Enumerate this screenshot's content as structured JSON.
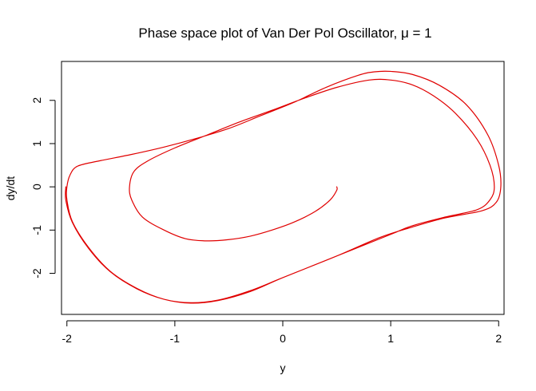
{
  "chart_data": {
    "type": "line",
    "title": "Phase space plot of Van Der Pol Oscillator, μ = 1",
    "xlabel": "y",
    "ylabel": "dy/dt",
    "xlim": [
      -2.05,
      2.05
    ],
    "ylim": [
      -2.95,
      2.9
    ],
    "x_ticks": [
      -2,
      -1,
      0,
      1,
      2
    ],
    "x_tick_labels": [
      "-2",
      "-1",
      "0",
      "1",
      "2"
    ],
    "y_ticks": [
      -2,
      -1,
      0,
      1,
      2
    ],
    "y_tick_labels": [
      "-2",
      "-1",
      "0",
      "1",
      "2"
    ],
    "grid": false,
    "series": [
      {
        "color": "#e00000",
        "points": [
          [
            0.5,
            0.0
          ],
          [
            0.5,
            -0.08
          ],
          [
            0.44,
            -0.3
          ],
          [
            0.3,
            -0.57
          ],
          [
            0.1,
            -0.82
          ],
          [
            -0.1,
            -1.0
          ],
          [
            -0.3,
            -1.14
          ],
          [
            -0.5,
            -1.22
          ],
          [
            -0.7,
            -1.25
          ],
          [
            -0.9,
            -1.2
          ],
          [
            -1.1,
            -1.0
          ],
          [
            -1.3,
            -0.7
          ],
          [
            -1.4,
            -0.3
          ],
          [
            -1.42,
            0.0
          ],
          [
            -1.38,
            0.35
          ],
          [
            -1.25,
            0.6
          ],
          [
            -1.0,
            0.9
          ],
          [
            -0.7,
            1.2
          ],
          [
            -0.4,
            1.5
          ],
          [
            -0.1,
            1.77
          ],
          [
            0.2,
            2.05
          ],
          [
            0.5,
            2.3
          ],
          [
            0.8,
            2.47
          ],
          [
            1.0,
            2.47
          ],
          [
            1.2,
            2.36
          ],
          [
            1.4,
            2.1
          ],
          [
            1.6,
            1.7
          ],
          [
            1.8,
            1.1
          ],
          [
            1.92,
            0.5
          ],
          [
            1.96,
            0.0
          ],
          [
            1.92,
            -0.3
          ],
          [
            1.8,
            -0.53
          ],
          [
            1.5,
            -0.7
          ],
          [
            1.2,
            -0.9
          ],
          [
            1.0,
            -1.1
          ],
          [
            0.5,
            -1.6
          ],
          [
            0.0,
            -2.1
          ],
          [
            -0.3,
            -2.4
          ],
          [
            -0.6,
            -2.62
          ],
          [
            -0.85,
            -2.68
          ],
          [
            -1.1,
            -2.6
          ],
          [
            -1.35,
            -2.35
          ],
          [
            -1.6,
            -1.95
          ],
          [
            -1.8,
            -1.4
          ],
          [
            -1.95,
            -0.8
          ],
          [
            -2.0,
            -0.3
          ],
          [
            -2.0,
            0.0
          ],
          [
            -1.97,
            0.28
          ],
          [
            -1.9,
            0.48
          ],
          [
            -1.7,
            0.6
          ],
          [
            -1.4,
            0.75
          ],
          [
            -1.1,
            0.92
          ],
          [
            -0.8,
            1.12
          ],
          [
            -0.5,
            1.35
          ],
          [
            -0.2,
            1.65
          ],
          [
            0.1,
            1.95
          ],
          [
            0.4,
            2.3
          ],
          [
            0.7,
            2.58
          ],
          [
            0.85,
            2.66
          ],
          [
            1.0,
            2.67
          ],
          [
            1.2,
            2.6
          ],
          [
            1.45,
            2.35
          ],
          [
            1.7,
            1.9
          ],
          [
            1.9,
            1.2
          ],
          [
            2.0,
            0.5
          ],
          [
            2.02,
            0.0
          ],
          [
            1.98,
            -0.35
          ],
          [
            1.85,
            -0.55
          ],
          [
            1.5,
            -0.72
          ],
          [
            1.2,
            -0.93
          ],
          [
            0.9,
            -1.17
          ],
          [
            0.5,
            -1.6
          ],
          [
            0.0,
            -2.1
          ],
          [
            -0.3,
            -2.42
          ],
          [
            -0.6,
            -2.63
          ],
          [
            -0.85,
            -2.69
          ],
          [
            -1.1,
            -2.6
          ],
          [
            -1.35,
            -2.36
          ],
          [
            -1.6,
            -1.96
          ],
          [
            -1.8,
            -1.42
          ],
          [
            -1.95,
            -0.82
          ],
          [
            -2.01,
            -0.31
          ],
          [
            -2.01,
            0.0
          ]
        ]
      }
    ]
  }
}
